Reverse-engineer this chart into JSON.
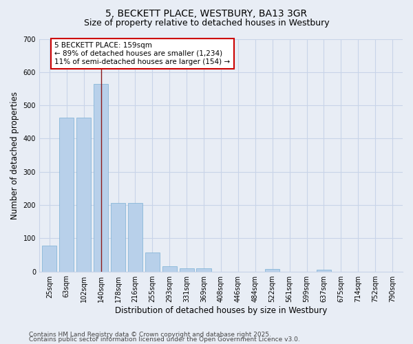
{
  "title_line1": "5, BECKETT PLACE, WESTBURY, BA13 3GR",
  "title_line2": "Size of property relative to detached houses in Westbury",
  "xlabel": "Distribution of detached houses by size in Westbury",
  "ylabel": "Number of detached properties",
  "categories": [
    "25sqm",
    "63sqm",
    "102sqm",
    "140sqm",
    "178sqm",
    "216sqm",
    "255sqm",
    "293sqm",
    "331sqm",
    "369sqm",
    "408sqm",
    "446sqm",
    "484sqm",
    "522sqm",
    "561sqm",
    "599sqm",
    "637sqm",
    "675sqm",
    "714sqm",
    "752sqm",
    "790sqm"
  ],
  "values": [
    78,
    462,
    462,
    565,
    207,
    207,
    57,
    15,
    9,
    9,
    0,
    0,
    0,
    8,
    0,
    0,
    5,
    0,
    0,
    0,
    0
  ],
  "bar_color": "#b8d0ea",
  "bar_edge_color": "#7aafd4",
  "annotation_text": "5 BECKETT PLACE: 159sqm\n← 89% of detached houses are smaller (1,234)\n11% of semi-detached houses are larger (154) →",
  "vline_x": 3.0,
  "vline_color": "#8b1a1a",
  "annotation_box_color": "#ffffff",
  "annotation_box_edge_color": "#cc0000",
  "background_color": "#e8edf5",
  "plot_bg_color": "#e8edf5",
  "grid_color": "#c8d4e8",
  "ylim": [
    0,
    700
  ],
  "yticks": [
    0,
    100,
    200,
    300,
    400,
    500,
    600,
    700
  ],
  "footer_line1": "Contains HM Land Registry data © Crown copyright and database right 2025.",
  "footer_line2": "Contains public sector information licensed under the Open Government Licence v3.0.",
  "title_fontsize": 10,
  "subtitle_fontsize": 9,
  "axis_label_fontsize": 8.5,
  "tick_fontsize": 7,
  "annotation_fontsize": 7.5,
  "footer_fontsize": 6.5
}
